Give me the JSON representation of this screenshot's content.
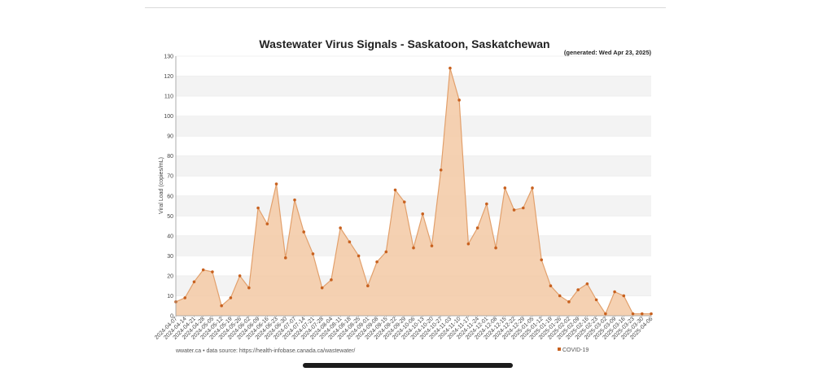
{
  "chart_data": {
    "type": "area",
    "title": "Wastewater Virus Signals - Saskatoon, Saskatchewan",
    "subtitle": "(generated: Wed Apr 23, 2025)",
    "ylabel": "Viral Load (copies/mL)",
    "xlabel": "",
    "ylim": [
      0,
      130
    ],
    "yticks": [
      0,
      10,
      20,
      30,
      40,
      50,
      60,
      70,
      80,
      90,
      100,
      110,
      120,
      130
    ],
    "grid": true,
    "legend_position": "bottom-right",
    "series": [
      {
        "name": "COVID-19",
        "color": "#c8611f",
        "fill": "#f3c9a4",
        "x": [
          "2024-04-07",
          "2024-04-14",
          "2024-04-21",
          "2024-04-28",
          "2024-05-05",
          "2024-05-12",
          "2024-05-19",
          "2024-05-26",
          "2024-06-02",
          "2024-06-09",
          "2024-06-16",
          "2024-06-23",
          "2024-06-30",
          "2024-07-07",
          "2024-07-14",
          "2024-07-21",
          "2024-07-28",
          "2024-08-04",
          "2024-08-11",
          "2024-08-18",
          "2024-08-25",
          "2024-09-01",
          "2024-09-08",
          "2024-09-15",
          "2024-09-22",
          "2024-09-29",
          "2024-10-06",
          "2024-10-13",
          "2024-10-20",
          "2024-10-27",
          "2024-11-03",
          "2024-11-10",
          "2024-11-17",
          "2024-11-24",
          "2024-12-01",
          "2024-12-08",
          "2024-12-15",
          "2024-12-22",
          "2024-12-29",
          "2025-01-05",
          "2025-01-12",
          "2025-01-19",
          "2025-01-26",
          "2025-02-02",
          "2025-02-09",
          "2025-02-16",
          "2025-02-23",
          "2025-03-02",
          "2025-03-09",
          "2025-03-16",
          "2025-03-23",
          "2025-03-30",
          "2025-04-06"
        ],
        "values": [
          7,
          9,
          17,
          23,
          22,
          5,
          9,
          20,
          14,
          54,
          46,
          66,
          29,
          58,
          42,
          31,
          14,
          18,
          44,
          37,
          30,
          15,
          27,
          32,
          63,
          57,
          34,
          51,
          35,
          73,
          124,
          108,
          36,
          44,
          56,
          34,
          64,
          53,
          54,
          64,
          28,
          15,
          10,
          7,
          13,
          16,
          8,
          1,
          12,
          10,
          1,
          1,
          1
        ]
      }
    ]
  },
  "footer": {
    "source": "wwater.ca • data source: https://health-infobase.canada.ca/wastewater/"
  }
}
